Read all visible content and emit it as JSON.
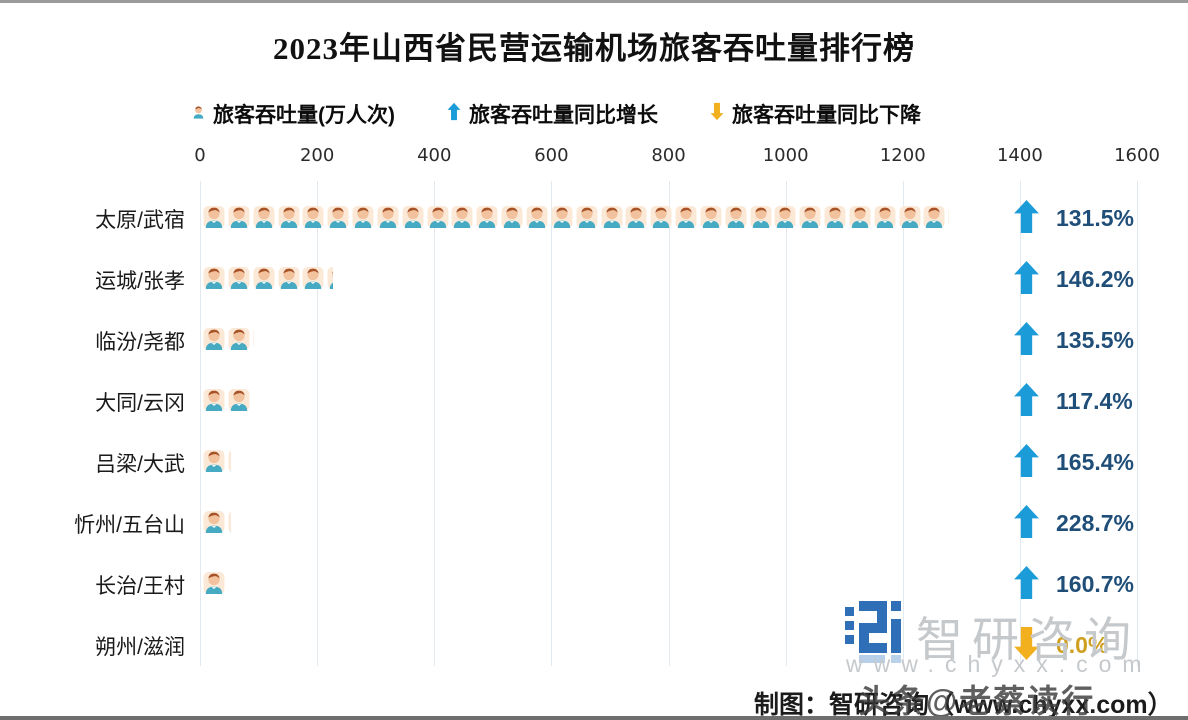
{
  "header": {
    "title": "2023年山西省民营运输机场旅客吞吐量排行榜"
  },
  "legend": {
    "throughput_label": "旅客吞吐量(万人次)",
    "increase_label": "旅客吞吐量同比增长",
    "decrease_label": "旅客吞吐量同比下降"
  },
  "chart_data": {
    "type": "bar",
    "subtype": "pictogram-horizontal",
    "title": "2023年山西省民营运输机场旅客吞吐量排行榜",
    "xlabel": "旅客吞吐量(万人次)",
    "x_axis": {
      "min": 0,
      "max": 1600,
      "ticks": [
        0,
        200,
        400,
        600,
        800,
        1000,
        1200,
        1400,
        1600
      ]
    },
    "grid": "vertical",
    "icon_unit_wan": 42.5,
    "categories": [
      "太原/武宿",
      "运城/张孝",
      "临汾/尧都",
      "大同/云冈",
      "吕梁/大武",
      "忻州/五台山",
      "长治/王村",
      "朔州/滋润"
    ],
    "rows": [
      {
        "airport": "太原/武宿",
        "value": 1274,
        "yoy": "131.5%",
        "direction": "up"
      },
      {
        "airport": "运城/张孝",
        "value": 222,
        "yoy": "146.2%",
        "direction": "up"
      },
      {
        "airport": "临汾/尧都",
        "value": 87,
        "yoy": "135.5%",
        "direction": "up"
      },
      {
        "airport": "大同/云冈",
        "value": 85,
        "yoy": "117.4%",
        "direction": "up"
      },
      {
        "airport": "吕梁/大武",
        "value": 48,
        "yoy": "165.4%",
        "direction": "up"
      },
      {
        "airport": "忻州/五台山",
        "value": 47,
        "yoy": "228.7%",
        "direction": "up"
      },
      {
        "airport": "长治/王村",
        "value": 38,
        "yoy": "160.7%",
        "direction": "up"
      },
      {
        "airport": "朔州/滋润",
        "value": 0,
        "yoy": "0.0%",
        "direction": "down"
      }
    ]
  },
  "watermark": {
    "brand": "智研咨询",
    "url": "www.chyxx.com"
  },
  "footer": {
    "credit": "制图：智研咨询（www.chyxx.com）",
    "overlay": "头条@老蔡读行"
  },
  "colors": {
    "up_arrow": "#1b9bd8",
    "pct_up": "#1f4e79",
    "down_arrow": "#f2b01e",
    "pct_down": "#cf9f1f",
    "icon_skin": "#f1c29d",
    "icon_hair": "#a85327",
    "icon_shirt": "#46abc2",
    "icon_glow": "#fbe8d6",
    "grid": "#e2e9ef",
    "watermark_gray": "#c6c9cc",
    "logo_blue": "#2e6fb7"
  }
}
